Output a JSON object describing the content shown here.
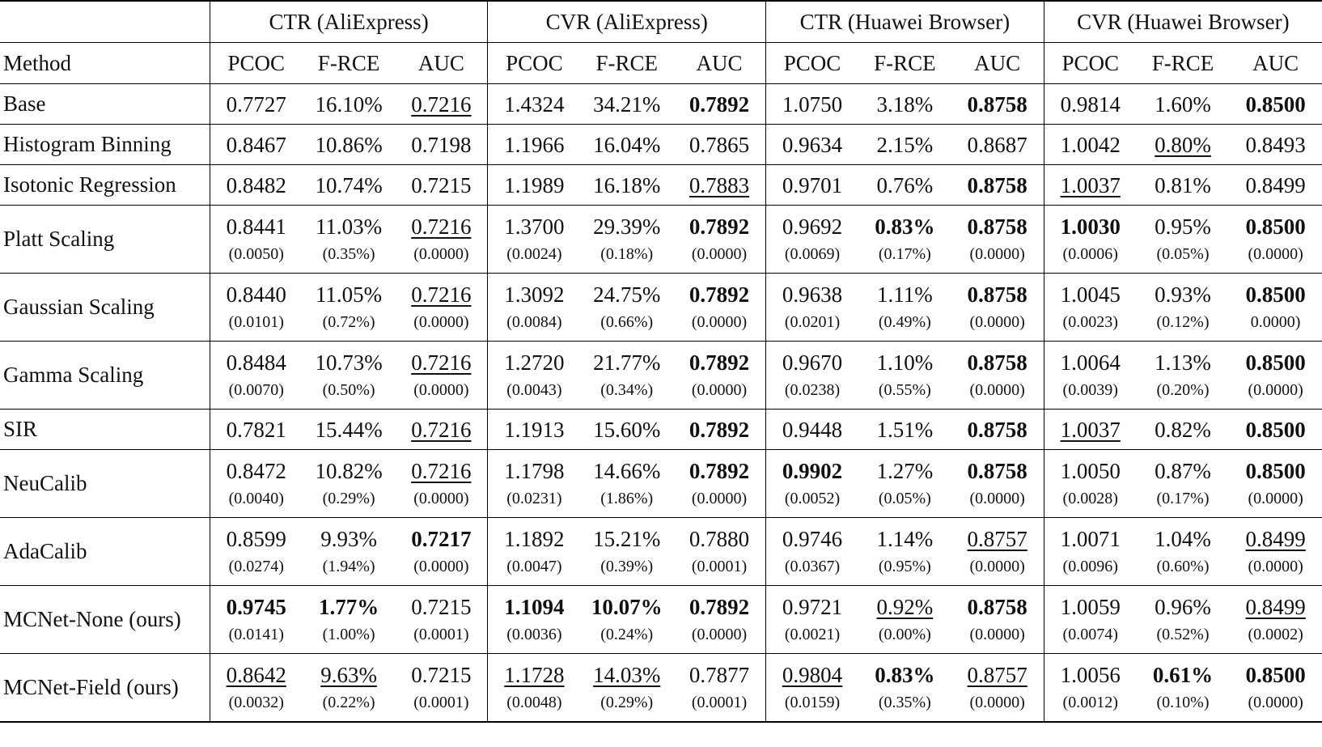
{
  "table": {
    "groups": [
      "CTR (AliExpress)",
      "CVR (AliExpress)",
      "CTR (Huawei Browser)",
      "CVR (Huawei Browser)"
    ],
    "method_header": "Method",
    "metrics": [
      "PCOC",
      "F-RCE",
      "AUC"
    ],
    "rows": [
      {
        "method": "Base",
        "cells": [
          {
            "v": "0.7727"
          },
          {
            "v": "16.10%"
          },
          {
            "v": "0.7216",
            "s": "u"
          },
          {
            "v": "1.4324"
          },
          {
            "v": "34.21%"
          },
          {
            "v": "0.7892",
            "s": "b"
          },
          {
            "v": "1.0750"
          },
          {
            "v": "3.18%"
          },
          {
            "v": "0.8758",
            "s": "b"
          },
          {
            "v": "0.9814"
          },
          {
            "v": "1.60%"
          },
          {
            "v": "0.8500",
            "s": "b"
          }
        ]
      },
      {
        "method": "Histogram Binning",
        "cells": [
          {
            "v": "0.8467"
          },
          {
            "v": "10.86%"
          },
          {
            "v": "0.7198"
          },
          {
            "v": "1.1966"
          },
          {
            "v": "16.04%"
          },
          {
            "v": "0.7865"
          },
          {
            "v": "0.9634"
          },
          {
            "v": "2.15%"
          },
          {
            "v": "0.8687"
          },
          {
            "v": "1.0042"
          },
          {
            "v": "0.80%",
            "s": "u"
          },
          {
            "v": "0.8493"
          }
        ]
      },
      {
        "method": "Isotonic Regression",
        "cells": [
          {
            "v": "0.8482"
          },
          {
            "v": "10.74%"
          },
          {
            "v": "0.7215"
          },
          {
            "v": "1.1989"
          },
          {
            "v": "16.18%"
          },
          {
            "v": "0.7883",
            "s": "u"
          },
          {
            "v": "0.9701"
          },
          {
            "v": "0.76%"
          },
          {
            "v": "0.8758",
            "s": "b"
          },
          {
            "v": "1.0037",
            "s": "u"
          },
          {
            "v": "0.81%"
          },
          {
            "v": "0.8499"
          }
        ]
      },
      {
        "method": "Platt Scaling",
        "cells": [
          {
            "v": "0.8441",
            "sd": "(0.0050)"
          },
          {
            "v": "11.03%",
            "sd": "(0.35%)"
          },
          {
            "v": "0.7216",
            "s": "u",
            "sd": "(0.0000)"
          },
          {
            "v": "1.3700",
            "sd": "(0.0024)"
          },
          {
            "v": "29.39%",
            "sd": "(0.18%)"
          },
          {
            "v": "0.7892",
            "s": "b",
            "sd": "(0.0000)"
          },
          {
            "v": "0.9692",
            "sd": "(0.0069)"
          },
          {
            "v": "0.83%",
            "s": "b",
            "sd": "(0.17%)"
          },
          {
            "v": "0.8758",
            "s": "b",
            "sd": "(0.0000)"
          },
          {
            "v": "1.0030",
            "s": "b",
            "sd": "(0.0006)"
          },
          {
            "v": "0.95%",
            "sd": "(0.05%)"
          },
          {
            "v": "0.8500",
            "s": "b",
            "sd": "(0.0000)"
          }
        ]
      },
      {
        "method": "Gaussian Scaling",
        "cells": [
          {
            "v": "0.8440",
            "sd": "(0.0101)"
          },
          {
            "v": "11.05%",
            "sd": "(0.72%)"
          },
          {
            "v": "0.7216",
            "s": "u",
            "sd": "(0.0000)"
          },
          {
            "v": "1.3092",
            "sd": "(0.0084)"
          },
          {
            "v": "24.75%",
            "sd": "(0.66%)"
          },
          {
            "v": "0.7892",
            "s": "b",
            "sd": "(0.0000)"
          },
          {
            "v": "0.9638",
            "sd": "(0.0201)"
          },
          {
            "v": "1.11%",
            "sd": "(0.49%)"
          },
          {
            "v": "0.8758",
            "s": "b",
            "sd": "(0.0000)"
          },
          {
            "v": "1.0045",
            "sd": "(0.0023)"
          },
          {
            "v": "0.93%",
            "sd": "(0.12%)"
          },
          {
            "v": "0.8500",
            "s": "b",
            "sd": "0.0000)"
          }
        ]
      },
      {
        "method": "Gamma Scaling",
        "cells": [
          {
            "v": "0.8484",
            "sd": "(0.0070)"
          },
          {
            "v": "10.73%",
            "sd": "(0.50%)"
          },
          {
            "v": "0.7216",
            "s": "u",
            "sd": "(0.0000)"
          },
          {
            "v": "1.2720",
            "sd": "(0.0043)"
          },
          {
            "v": "21.77%",
            "sd": "(0.34%)"
          },
          {
            "v": "0.7892",
            "s": "b",
            "sd": "(0.0000)"
          },
          {
            "v": "0.9670",
            "sd": "(0.0238)"
          },
          {
            "v": "1.10%",
            "sd": "(0.55%)"
          },
          {
            "v": "0.8758",
            "s": "b",
            "sd": "(0.0000)"
          },
          {
            "v": "1.0064",
            "sd": "(0.0039)"
          },
          {
            "v": "1.13%",
            "sd": "(0.20%)"
          },
          {
            "v": "0.8500",
            "s": "b",
            "sd": "(0.0000)"
          }
        ]
      },
      {
        "method": "SIR",
        "cells": [
          {
            "v": "0.7821"
          },
          {
            "v": "15.44%"
          },
          {
            "v": "0.7216",
            "s": "u"
          },
          {
            "v": "1.1913"
          },
          {
            "v": "15.60%"
          },
          {
            "v": "0.7892",
            "s": "b"
          },
          {
            "v": "0.9448"
          },
          {
            "v": "1.51%"
          },
          {
            "v": "0.8758",
            "s": "b"
          },
          {
            "v": "1.0037",
            "s": "u"
          },
          {
            "v": "0.82%"
          },
          {
            "v": "0.8500",
            "s": "b"
          }
        ]
      },
      {
        "method": "NeuCalib",
        "cells": [
          {
            "v": "0.8472",
            "sd": "(0.0040)"
          },
          {
            "v": "10.82%",
            "sd": "(0.29%)"
          },
          {
            "v": "0.7216",
            "s": "u",
            "sd": "(0.0000)"
          },
          {
            "v": "1.1798",
            "sd": "(0.0231)"
          },
          {
            "v": "14.66%",
            "sd": "(1.86%)"
          },
          {
            "v": "0.7892",
            "s": "b",
            "sd": "(0.0000)"
          },
          {
            "v": "0.9902",
            "s": "b",
            "sd": "(0.0052)"
          },
          {
            "v": "1.27%",
            "sd": "(0.05%)"
          },
          {
            "v": "0.8758",
            "s": "b",
            "sd": "(0.0000)"
          },
          {
            "v": "1.0050",
            "sd": "(0.0028)"
          },
          {
            "v": "0.87%",
            "sd": "(0.17%)"
          },
          {
            "v": "0.8500",
            "s": "b",
            "sd": "(0.0000)"
          }
        ]
      },
      {
        "method": "AdaCalib",
        "cells": [
          {
            "v": "0.8599",
            "sd": "(0.0274)"
          },
          {
            "v": "9.93%",
            "sd": "(1.94%)"
          },
          {
            "v": "0.7217",
            "s": "b",
            "sd": "(0.0000)"
          },
          {
            "v": "1.1892",
            "sd": "(0.0047)"
          },
          {
            "v": "15.21%",
            "sd": "(0.39%)"
          },
          {
            "v": "0.7880",
            "sd": "(0.0001)"
          },
          {
            "v": "0.9746",
            "sd": "(0.0367)"
          },
          {
            "v": "1.14%",
            "sd": "(0.95%)"
          },
          {
            "v": "0.8757",
            "s": "u",
            "sd": "(0.0000)"
          },
          {
            "v": "1.0071",
            "sd": "(0.0096)"
          },
          {
            "v": "1.04%",
            "sd": "(0.60%)"
          },
          {
            "v": "0.8499",
            "s": "u",
            "sd": "(0.0000)"
          }
        ]
      },
      {
        "method": "MCNet-None (ours)",
        "cells": [
          {
            "v": "0.9745",
            "s": "b",
            "sd": "(0.0141)"
          },
          {
            "v": "1.77%",
            "s": "b",
            "sd": "(1.00%)"
          },
          {
            "v": "0.7215",
            "sd": "(0.0001)"
          },
          {
            "v": "1.1094",
            "s": "b",
            "sd": "(0.0036)"
          },
          {
            "v": "10.07%",
            "s": "b",
            "sd": "(0.24%)"
          },
          {
            "v": "0.7892",
            "s": "b",
            "sd": "(0.0000)"
          },
          {
            "v": "0.9721",
            "sd": "(0.0021)"
          },
          {
            "v": "0.92%",
            "s": "u",
            "sd": "(0.00%)"
          },
          {
            "v": "0.8758",
            "s": "b",
            "sd": "(0.0000)"
          },
          {
            "v": "1.0059",
            "sd": "(0.0074)"
          },
          {
            "v": "0.96%",
            "sd": "(0.52%)"
          },
          {
            "v": "0.8499",
            "s": "u",
            "sd": "(0.0002)"
          }
        ]
      },
      {
        "method": "MCNet-Field (ours)",
        "cells": [
          {
            "v": "0.8642",
            "s": "u",
            "sd": "(0.0032)"
          },
          {
            "v": "9.63%",
            "s": "u",
            "sd": "(0.22%)"
          },
          {
            "v": "0.7215",
            "sd": "(0.0001)"
          },
          {
            "v": "1.1728",
            "s": "u",
            "sd": "(0.0048)"
          },
          {
            "v": "14.03%",
            "s": "u",
            "sd": "(0.29%)"
          },
          {
            "v": "0.7877",
            "sd": "(0.0001)"
          },
          {
            "v": "0.9804",
            "s": "u",
            "sd": "(0.0159)"
          },
          {
            "v": "0.83%",
            "s": "b",
            "sd": "(0.35%)"
          },
          {
            "v": "0.8757",
            "s": "u",
            "sd": "(0.0000)"
          },
          {
            "v": "1.0056",
            "sd": "(0.0012)"
          },
          {
            "v": "0.61%",
            "s": "b",
            "sd": "(0.10%)"
          },
          {
            "v": "0.8500",
            "s": "b",
            "sd": "(0.0000)"
          }
        ]
      }
    ]
  }
}
